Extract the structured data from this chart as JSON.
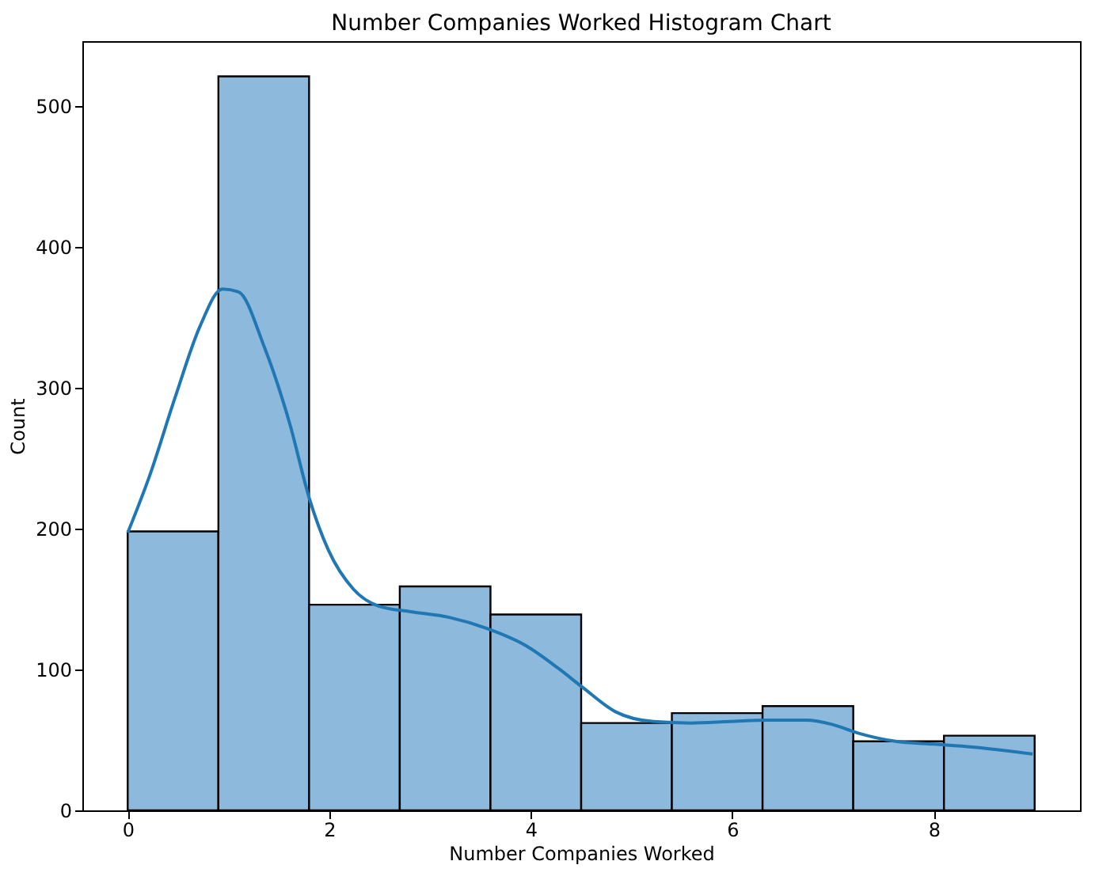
{
  "chart_data": {
    "type": "histogram",
    "title": "Number Companies Worked Histogram Chart",
    "xlabel": "Number Companies Worked",
    "ylabel": "Count",
    "bins": [
      0,
      0.9,
      1.8,
      2.7,
      3.6,
      4.5,
      5.4,
      6.3,
      7.2,
      8.1,
      9
    ],
    "values": [
      198,
      521,
      146,
      159,
      139,
      62,
      69,
      74,
      49,
      53
    ],
    "color": "#8db9dc",
    "series": [
      {
        "type": "line",
        "color": "#1f77b4",
        "x": [
          0,
          0.215,
          0.47,
          0.72,
          0.94,
          1.1,
          1.35,
          1.61,
          1.8,
          1.99,
          2.24,
          2.49,
          2.81,
          3.19,
          3.57,
          3.95,
          4.27,
          4.52,
          4.84,
          5.22,
          5.59,
          5.97,
          6.35,
          6.73,
          6.99,
          7.24,
          7.62,
          8.0,
          8.38,
          8.98
        ],
        "values": [
          197,
          237,
          293,
          344,
          370,
          368,
          330,
          274,
          222,
          185,
          157,
          145,
          141,
          137,
          129,
          117,
          101,
          87,
          70,
          63,
          62,
          63,
          64,
          64,
          61,
          55,
          49,
          47,
          45,
          40
        ]
      }
    ],
    "xlim": [
      -0.45,
      9.45
    ],
    "ylim": [
      0,
      546
    ],
    "xticks": [
      0,
      2,
      4,
      6,
      8
    ],
    "yticks": [
      0,
      100,
      200,
      300,
      400,
      500
    ],
    "grid": false
  }
}
